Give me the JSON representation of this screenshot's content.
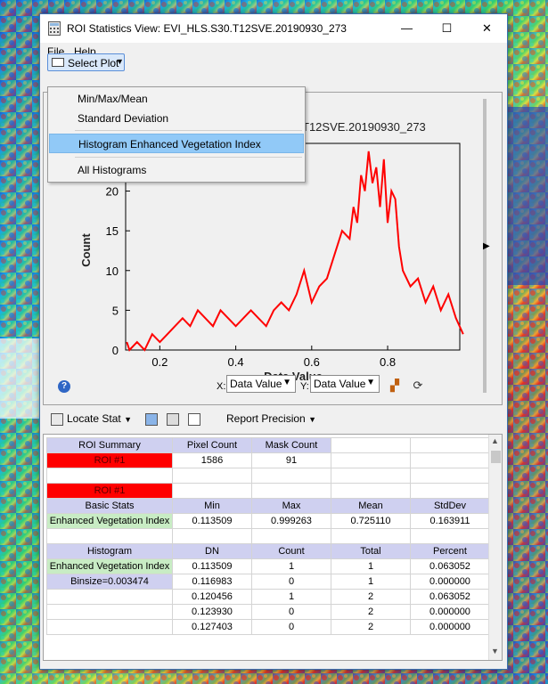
{
  "window": {
    "title": "ROI Statistics View: EVI_HLS.S30.T12SVE.20190930_273",
    "controls": {
      "minimize": "—",
      "maximize": "☐",
      "close": "✕"
    }
  },
  "menu": {
    "file": "File",
    "help": "Help"
  },
  "toolbar": {
    "select_plot": "Select Plot"
  },
  "dropdown": {
    "items": [
      "Min/Max/Mean",
      "Standard Deviation",
      "Histogram Enhanced Vegetation Index",
      "All Histograms"
    ],
    "highlighted_index": 2
  },
  "chart_data": {
    "type": "line",
    "title_visible_part": "T12SVE.20190930_273",
    "xlabel": "Data Value",
    "ylabel": "Count",
    "xlim": [
      0.11,
      0.99
    ],
    "ylim": [
      0,
      26
    ],
    "x_ticks": [
      "0.2",
      "0.4",
      "0.6",
      "0.8"
    ],
    "y_ticks": [
      "0",
      "5",
      "10",
      "15",
      "20"
    ],
    "color": "#ff0000",
    "series": [
      {
        "x": [
          0.113,
          0.12,
          0.14,
          0.16,
          0.18,
          0.2,
          0.22,
          0.24,
          0.26,
          0.28,
          0.3,
          0.32,
          0.34,
          0.36,
          0.38,
          0.4,
          0.42,
          0.44,
          0.46,
          0.48,
          0.5,
          0.52,
          0.54,
          0.56,
          0.58,
          0.6,
          0.62,
          0.64,
          0.66,
          0.68,
          0.7,
          0.71,
          0.72,
          0.73,
          0.74,
          0.75,
          0.76,
          0.77,
          0.78,
          0.79,
          0.8,
          0.81,
          0.82,
          0.83,
          0.84,
          0.86,
          0.88,
          0.9,
          0.92,
          0.94,
          0.96,
          0.98,
          0.999
        ],
        "y": [
          1,
          0,
          1,
          0,
          2,
          1,
          2,
          3,
          4,
          3,
          5,
          4,
          3,
          5,
          4,
          3,
          4,
          5,
          4,
          3,
          5,
          6,
          5,
          7,
          10,
          6,
          8,
          9,
          12,
          15,
          14,
          18,
          16,
          22,
          20,
          25,
          21,
          23,
          18,
          24,
          16,
          20,
          19,
          13,
          10,
          8,
          9,
          6,
          8,
          5,
          7,
          4,
          2
        ]
      }
    ]
  },
  "plot_controls": {
    "x_label": "X:",
    "x_value": "Data Value",
    "y_label": "Y:",
    "y_value": "Data Value",
    "help": "?"
  },
  "lower_toolbar": {
    "locate_stat": "Locate Stat",
    "report_precision": "Report Precision"
  },
  "table": {
    "rows": [
      {
        "cells": [
          "ROI Summary",
          "Pixel Count",
          "Mask Count",
          "",
          ""
        ],
        "styles": [
          "hdr",
          "hdr",
          "hdr",
          "",
          ""
        ]
      },
      {
        "cells": [
          "ROI #1",
          "1586",
          "91",
          "",
          ""
        ],
        "styles": [
          "red",
          "",
          "",
          "",
          ""
        ]
      },
      {
        "cells": [
          "",
          "",
          "",
          "",
          ""
        ],
        "styles": [
          "",
          "",
          "",
          "",
          ""
        ]
      },
      {
        "cells": [
          "ROI #1",
          "",
          "",
          "",
          ""
        ],
        "styles": [
          "red",
          "",
          "",
          "",
          ""
        ]
      },
      {
        "cells": [
          "Basic Stats",
          "Min",
          "Max",
          "Mean",
          "StdDev"
        ],
        "styles": [
          "hdr",
          "hdr",
          "hdr",
          "hdr",
          "hdr"
        ]
      },
      {
        "cells": [
          "Enhanced Vegetation Index",
          "0.113509",
          "0.999263",
          "0.725110",
          "0.163911"
        ],
        "styles": [
          "green",
          "",
          "",
          "",
          ""
        ]
      },
      {
        "cells": [
          "",
          "",
          "",
          "",
          ""
        ],
        "styles": [
          "",
          "",
          "",
          "",
          ""
        ]
      },
      {
        "cells": [
          "Histogram",
          "DN",
          "Count",
          "Total",
          "Percent"
        ],
        "styles": [
          "hdr",
          "hdr",
          "hdr",
          "hdr",
          "hdr"
        ]
      },
      {
        "cells": [
          "Enhanced Vegetation Index",
          "0.113509",
          "1",
          "1",
          "0.063052"
        ],
        "styles": [
          "green",
          "",
          "",
          "",
          ""
        ]
      },
      {
        "cells": [
          "Binsize=0.003474",
          "0.116983",
          "0",
          "1",
          "0.000000"
        ],
        "styles": [
          "hdr",
          "",
          "",
          "",
          ""
        ]
      },
      {
        "cells": [
          "",
          "0.120456",
          "1",
          "2",
          "0.063052"
        ],
        "styles": [
          "",
          "",
          "",
          "",
          ""
        ]
      },
      {
        "cells": [
          "",
          "0.123930",
          "0",
          "2",
          "0.000000"
        ],
        "styles": [
          "",
          "",
          "",
          "",
          ""
        ]
      },
      {
        "cells": [
          "",
          "0.127403",
          "0",
          "2",
          "0.000000"
        ],
        "styles": [
          "",
          "",
          "",
          "",
          ""
        ]
      }
    ]
  }
}
